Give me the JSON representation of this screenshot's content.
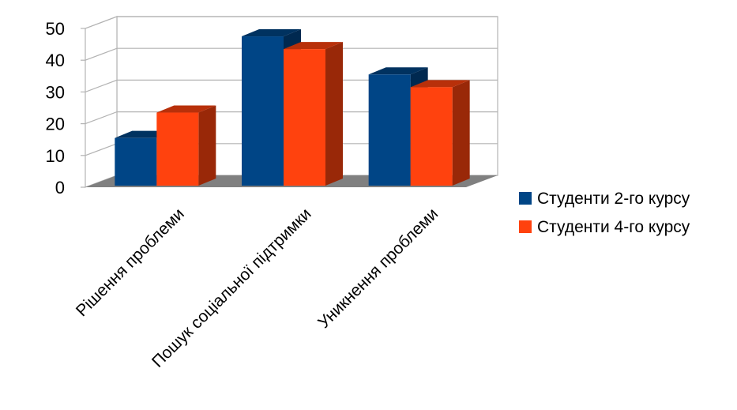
{
  "chart_data": {
    "type": "bar",
    "categories": [
      "Рішення проблеми",
      "Пошук соціальної підтримки",
      "Уникнення проблеми"
    ],
    "series": [
      {
        "name": "Студенти 2-го курсу",
        "values": [
          16,
          48,
          36
        ],
        "color": "#004586"
      },
      {
        "name": "Студенти 4-го курсу",
        "values": [
          24,
          44,
          32
        ],
        "color": "#ff420e"
      }
    ],
    "ylim": [
      0,
      50
    ],
    "yticks": [
      0,
      10,
      20,
      30,
      40,
      50
    ],
    "grid": true,
    "legend_position": "right",
    "three_d": true,
    "wall_color": "#b3b3b3",
    "floor_color": "#808080",
    "title": "",
    "xlabel": "",
    "ylabel": ""
  }
}
